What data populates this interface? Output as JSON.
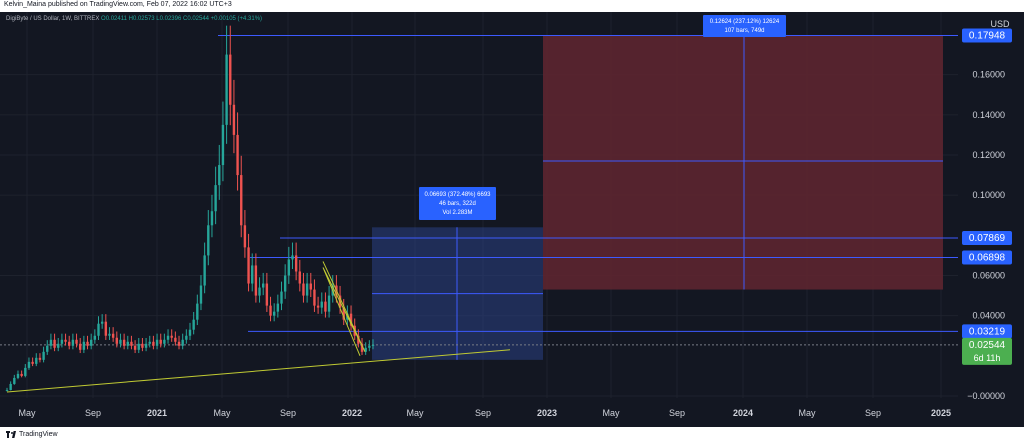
{
  "header": {
    "publisher": "Kelvin_Maina published on TradingView.com, Feb 07, 2022 16:02 UTC+3"
  },
  "legend": {
    "symbol": "DigiByte / US Dollar, 1W, BITTREX",
    "ohlc": "O0.02411 H0.02573 L0.02396 C0.02544 +0.00105 (+4.31%)"
  },
  "footer": {
    "brand": "TradingView"
  },
  "colors": {
    "background": "#131722",
    "up": "#26a69a",
    "down": "#ef5350",
    "grid": "#1e222d",
    "hline": "#3d5afe",
    "trend": "#c0ca33",
    "long_zone": "#2a3f84",
    "short_zone": "#5d2530",
    "price_tag": "#2962ff",
    "current_tag": "#4caf50"
  },
  "chart_data": {
    "type": "candlestick",
    "title": "DigiByte / US Dollar, 1W, BITTREX",
    "currency": "USD",
    "x_axis_labels": [
      "May",
      "Sep",
      "2021",
      "May",
      "Sep",
      "2022",
      "May",
      "Sep",
      "2023",
      "May",
      "Sep",
      "2024",
      "May",
      "Sep",
      "2025"
    ],
    "y_axis_labels": [
      "0.16000",
      "0.14000",
      "0.12000",
      "0.10000",
      "0.06000",
      "0.04000",
      "−0.00000"
    ],
    "ylim": [
      -0.009,
      0.189
    ],
    "grid": true,
    "price_levels": [
      "0.17948",
      "0.07869",
      "0.06898",
      "0.03219"
    ],
    "current_price": "0.02544",
    "countdown": "6d 11h",
    "measure_long": {
      "line1": "0.06693 (372.48%) 6693",
      "line2": "46 bars, 322d",
      "line3": "Vol 2.283M"
    },
    "measure_short": {
      "line1": "0.12624 (237.12%) 12624",
      "line2": "107 bars, 749d"
    },
    "closes": [
      0.003,
      0.006,
      0.009,
      0.011,
      0.01,
      0.014,
      0.017,
      0.016,
      0.019,
      0.018,
      0.022,
      0.025,
      0.028,
      0.024,
      0.026,
      0.028,
      0.027,
      0.025,
      0.028,
      0.026,
      0.023,
      0.027,
      0.025,
      0.028,
      0.03,
      0.036,
      0.037,
      0.03,
      0.031,
      0.029,
      0.026,
      0.028,
      0.025,
      0.027,
      0.025,
      0.023,
      0.026,
      0.024,
      0.026,
      0.027,
      0.025,
      0.028,
      0.026,
      0.028,
      0.03,
      0.029,
      0.027,
      0.025,
      0.028,
      0.03,
      0.033,
      0.038,
      0.046,
      0.055,
      0.07,
      0.085,
      0.092,
      0.105,
      0.115,
      0.135,
      0.17,
      0.145,
      0.13,
      0.11,
      0.085,
      0.074,
      0.056,
      0.065,
      0.05,
      0.054,
      0.056,
      0.045,
      0.04,
      0.042,
      0.046,
      0.052,
      0.06,
      0.068,
      0.07,
      0.062,
      0.056,
      0.05,
      0.056,
      0.053,
      0.045,
      0.044,
      0.047,
      0.042,
      0.05,
      0.055,
      0.05,
      0.044,
      0.038,
      0.041,
      0.035,
      0.03,
      0.026,
      0.022,
      0.024,
      0.025,
      0.0254
    ]
  }
}
